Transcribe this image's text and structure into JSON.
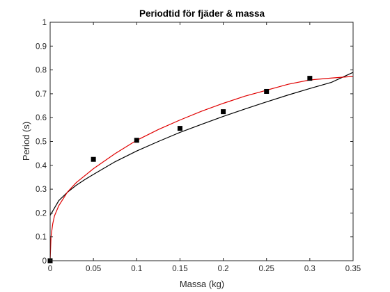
{
  "chart_data": {
    "type": "scatter",
    "title": "Periodtid för fjäder & massa",
    "xlabel": "Massa (kg)",
    "ylabel": "Period (s)",
    "xlim": [
      0,
      0.35
    ],
    "ylim": [
      0,
      1
    ],
    "x_ticks": [
      "0",
      "0.05",
      "0.1",
      "0.15",
      "0.2",
      "0.25",
      "0.3",
      "0.35"
    ],
    "y_ticks": [
      "0",
      "0.1",
      "0.2",
      "0.3",
      "0.4",
      "0.5",
      "0.6",
      "0.7",
      "0.8",
      "0.9",
      "1"
    ],
    "grid": false,
    "legend": "none",
    "series": [
      {
        "type": "scatter",
        "marker": "square",
        "color": "#000000",
        "x": [
          0,
          0.05,
          0.1,
          0.15,
          0.2,
          0.25,
          0.3
        ],
        "y": [
          0.0,
          0.425,
          0.505,
          0.555,
          0.625,
          0.71,
          0.765
        ]
      },
      {
        "type": "line",
        "color": "#000000",
        "x": [
          0,
          0.01,
          0.02,
          0.03,
          0.04,
          0.05,
          0.075,
          0.1,
          0.125,
          0.15,
          0.175,
          0.2,
          0.225,
          0.25,
          0.275,
          0.3,
          0.325,
          0.35
        ],
        "y": [
          0.19,
          0.252,
          0.287,
          0.316,
          0.34,
          0.362,
          0.415,
          0.46,
          0.5,
          0.538,
          0.572,
          0.605,
          0.636,
          0.666,
          0.695,
          0.722,
          0.748,
          0.79
        ]
      },
      {
        "type": "line",
        "color": "#e00000",
        "x": [
          0,
          0.001,
          0.003,
          0.005,
          0.01,
          0.02,
          0.03,
          0.05,
          0.075,
          0.1,
          0.125,
          0.15,
          0.175,
          0.2,
          0.225,
          0.25,
          0.275,
          0.3,
          0.325,
          0.35
        ],
        "y": [
          0.0,
          0.1,
          0.155,
          0.188,
          0.231,
          0.288,
          0.327,
          0.386,
          0.449,
          0.505,
          0.55,
          0.59,
          0.627,
          0.66,
          0.69,
          0.715,
          0.74,
          0.758,
          0.766,
          0.773
        ]
      }
    ]
  }
}
